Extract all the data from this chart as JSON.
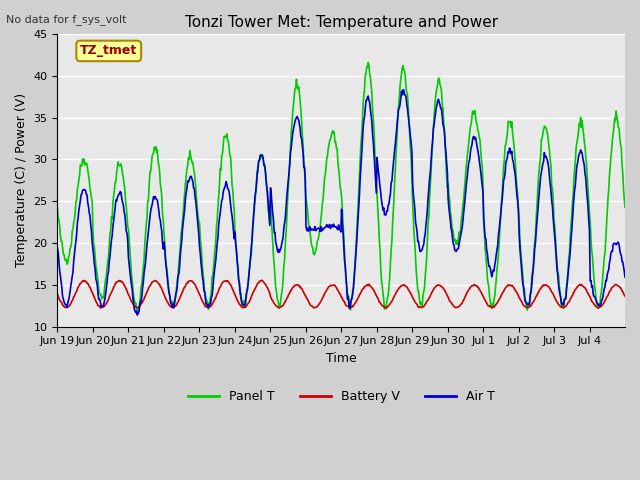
{
  "title": "Tonzi Tower Met: Temperature and Power",
  "xlabel": "Time",
  "ylabel": "Temperature (C) / Power (V)",
  "top_left_text": "No data for f_sys_volt",
  "annotation_label": "TZ_tmet",
  "ylim": [
    10,
    45
  ],
  "yticks": [
    10,
    15,
    20,
    25,
    30,
    35,
    40,
    45
  ],
  "panel_T_color": "#00cc00",
  "battery_V_color": "#cc0000",
  "air_T_color": "#0000cc",
  "legend_labels": [
    "Panel T",
    "Battery V",
    "Air T"
  ],
  "x_tick_labels": [
    "Jun 19",
    "Jun 20",
    "Jun 21",
    "Jun 22",
    "Jun 23",
    "Jun 24",
    "Jun 25",
    "Jun 26",
    "Jun 27",
    "Jun 28",
    "Jun 29",
    "Jun 30",
    "Jul 1",
    "Jul 2",
    "Jul 3",
    "Jul 4"
  ],
  "num_days": 16,
  "panel_T_peaks": [
    30,
    29.5,
    31.5,
    30.3,
    33,
    30.5,
    39,
    33,
    41,
    41,
    39.5,
    35.5,
    34.5,
    34,
    34.5,
    35
  ],
  "panel_T_mins": [
    18,
    13.5,
    12,
    12.5,
    12.5,
    12.5,
    12.5,
    19,
    12.5,
    12.5,
    12.5,
    20,
    12.5,
    12.5,
    12.5,
    12.5
  ],
  "air_T_peaks": [
    26.5,
    26,
    25.5,
    28,
    27,
    30.5,
    35,
    22,
    37.5,
    38,
    37,
    32.5,
    31,
    30.5,
    31,
    20
  ],
  "air_T_mins": [
    12.5,
    12.5,
    11.5,
    12.5,
    12.5,
    12.5,
    19,
    21.5,
    12.5,
    23.5,
    19,
    19,
    16.5,
    12.5,
    12.5,
    12.5
  ],
  "battery_V_peaks": [
    15.5,
    15.5,
    15.5,
    15.5,
    15.5,
    15.5,
    15,
    15,
    15,
    15,
    15,
    15,
    15,
    15,
    15,
    15
  ],
  "battery_V_mins": [
    12.3,
    12.3,
    12.3,
    12.3,
    12.3,
    12.3,
    12.3,
    12.3,
    12.3,
    12.3,
    12.3,
    12.3,
    12.3,
    12.3,
    12.3,
    12.3
  ]
}
